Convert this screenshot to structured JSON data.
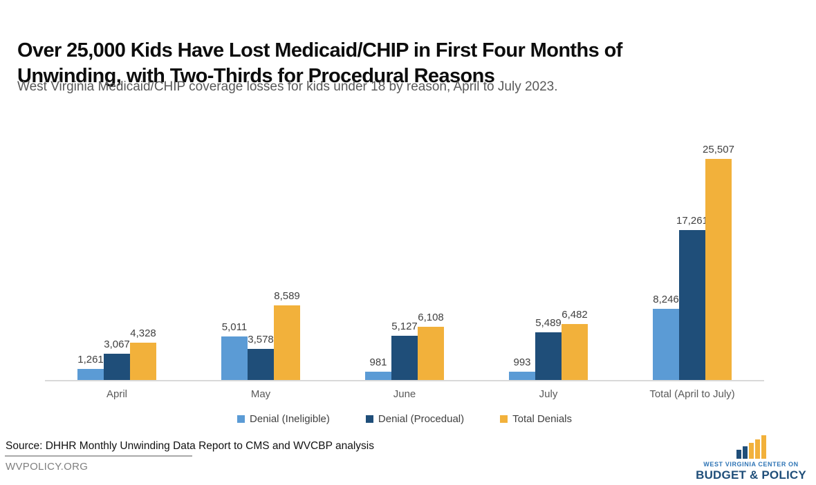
{
  "header": {
    "title_line1": "Over 25,000 Kids Have Lost Medicaid/CHIP in First Four Months of",
    "title_line2": "Unwinding, with Two-Thirds for Procedural Reasons",
    "subtitle": "West Virginia Medicaid/CHIP coverage losses for kids under 18 by reason, April to July 2023."
  },
  "chart_data": {
    "type": "bar",
    "title": "Over 25,000 Kids Have Lost Medicaid/CHIP in First Four Months of Unwinding, with Two-Thirds for Procedural Reasons",
    "subtitle": "West Virginia Medicaid/CHIP coverage losses for kids under 18 by reason, April to July 2023.",
    "categories": [
      "April",
      "May",
      "June",
      "July",
      "Total (April to July)"
    ],
    "series": [
      {
        "name": "Denial (Ineligible)",
        "color": "#5b9bd5",
        "values": [
          1261,
          5011,
          981,
          993,
          8246
        ]
      },
      {
        "name": "Denial (Procedual)",
        "color": "#1f4e79",
        "values": [
          3067,
          3578,
          5127,
          5489,
          17261
        ]
      },
      {
        "name": "Total Denials",
        "color": "#f2b13b",
        "values": [
          4328,
          8589,
          6108,
          6482,
          25507
        ]
      }
    ],
    "value_labels": {
      "format": "thousands-comma",
      "shown_for_every_bar": true
    },
    "xlabel": "",
    "ylabel": "",
    "ylim": [
      0,
      25507
    ],
    "grid": false,
    "y_axis_ticks_visible": false,
    "legend_position": "bottom",
    "axis_line_color": "#d9d9d9"
  },
  "footer": {
    "source": "Source: DHHR Monthly Unwinding Data Report to CMS and WVCBP analysis",
    "website": "WVPOLICY.ORG",
    "logo": {
      "line1": "WEST VIRGINIA CENTER ON",
      "line2": "BUDGET & POLICY",
      "icon": "ascending-bar-chart-logo-icon",
      "bar_colors": [
        "#1f4e79",
        "#1f4e79",
        "#f2b13b",
        "#f2b13b",
        "#f2b13b"
      ]
    }
  },
  "colors": {
    "title_text": "#0d0d0d",
    "subtitle_text": "#595959",
    "value_label_text": "#404040",
    "category_label_text": "#595959",
    "series_light_blue": "#5b9bd5",
    "series_dark_blue": "#1f4e79",
    "series_gold": "#f2b13b",
    "axis_line": "#d9d9d9",
    "background": "#ffffff"
  }
}
